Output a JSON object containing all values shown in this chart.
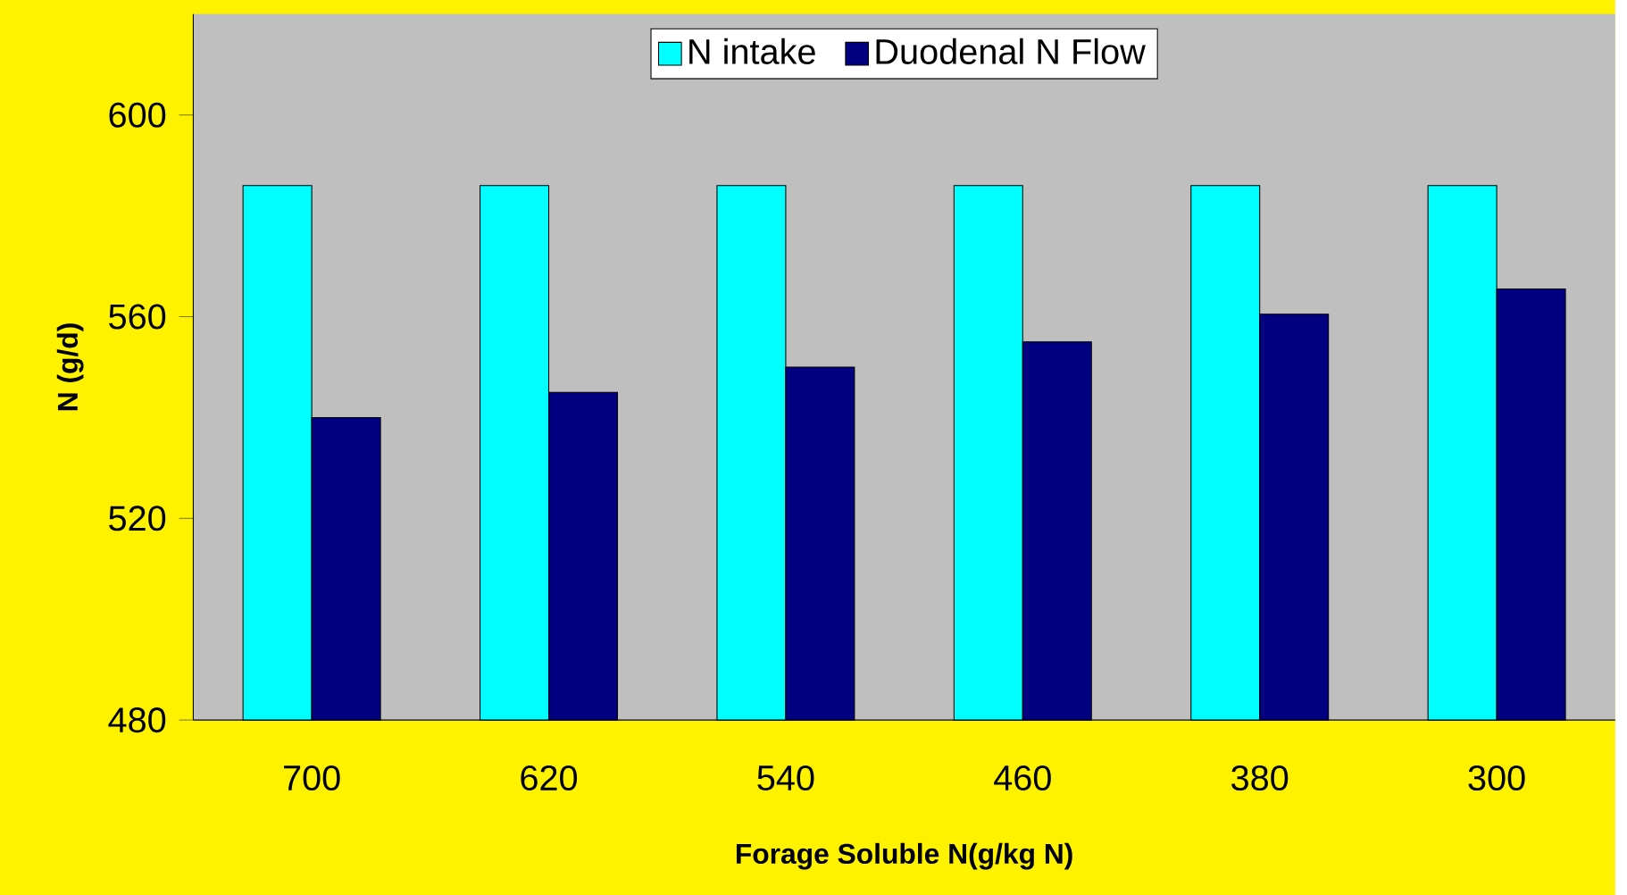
{
  "chart_data": {
    "type": "bar",
    "xlabel": "Forage Soluble N(g/kg N)",
    "ylabel": "N (g/d)",
    "categories": [
      "700",
      "620",
      "540",
      "460",
      "380",
      "300"
    ],
    "series": [
      {
        "name": "N intake",
        "color": "#00ffff",
        "values": [
          586,
          586,
          586,
          586,
          586,
          586
        ]
      },
      {
        "name": "Duodenal N Flow",
        "color": "#000080",
        "values": [
          540,
          545,
          550,
          555,
          560.5,
          565.5
        ]
      }
    ],
    "ylim": [
      480,
      620
    ],
    "yticks": [
      480,
      520,
      560,
      600
    ],
    "grid": false,
    "legend": "top"
  }
}
